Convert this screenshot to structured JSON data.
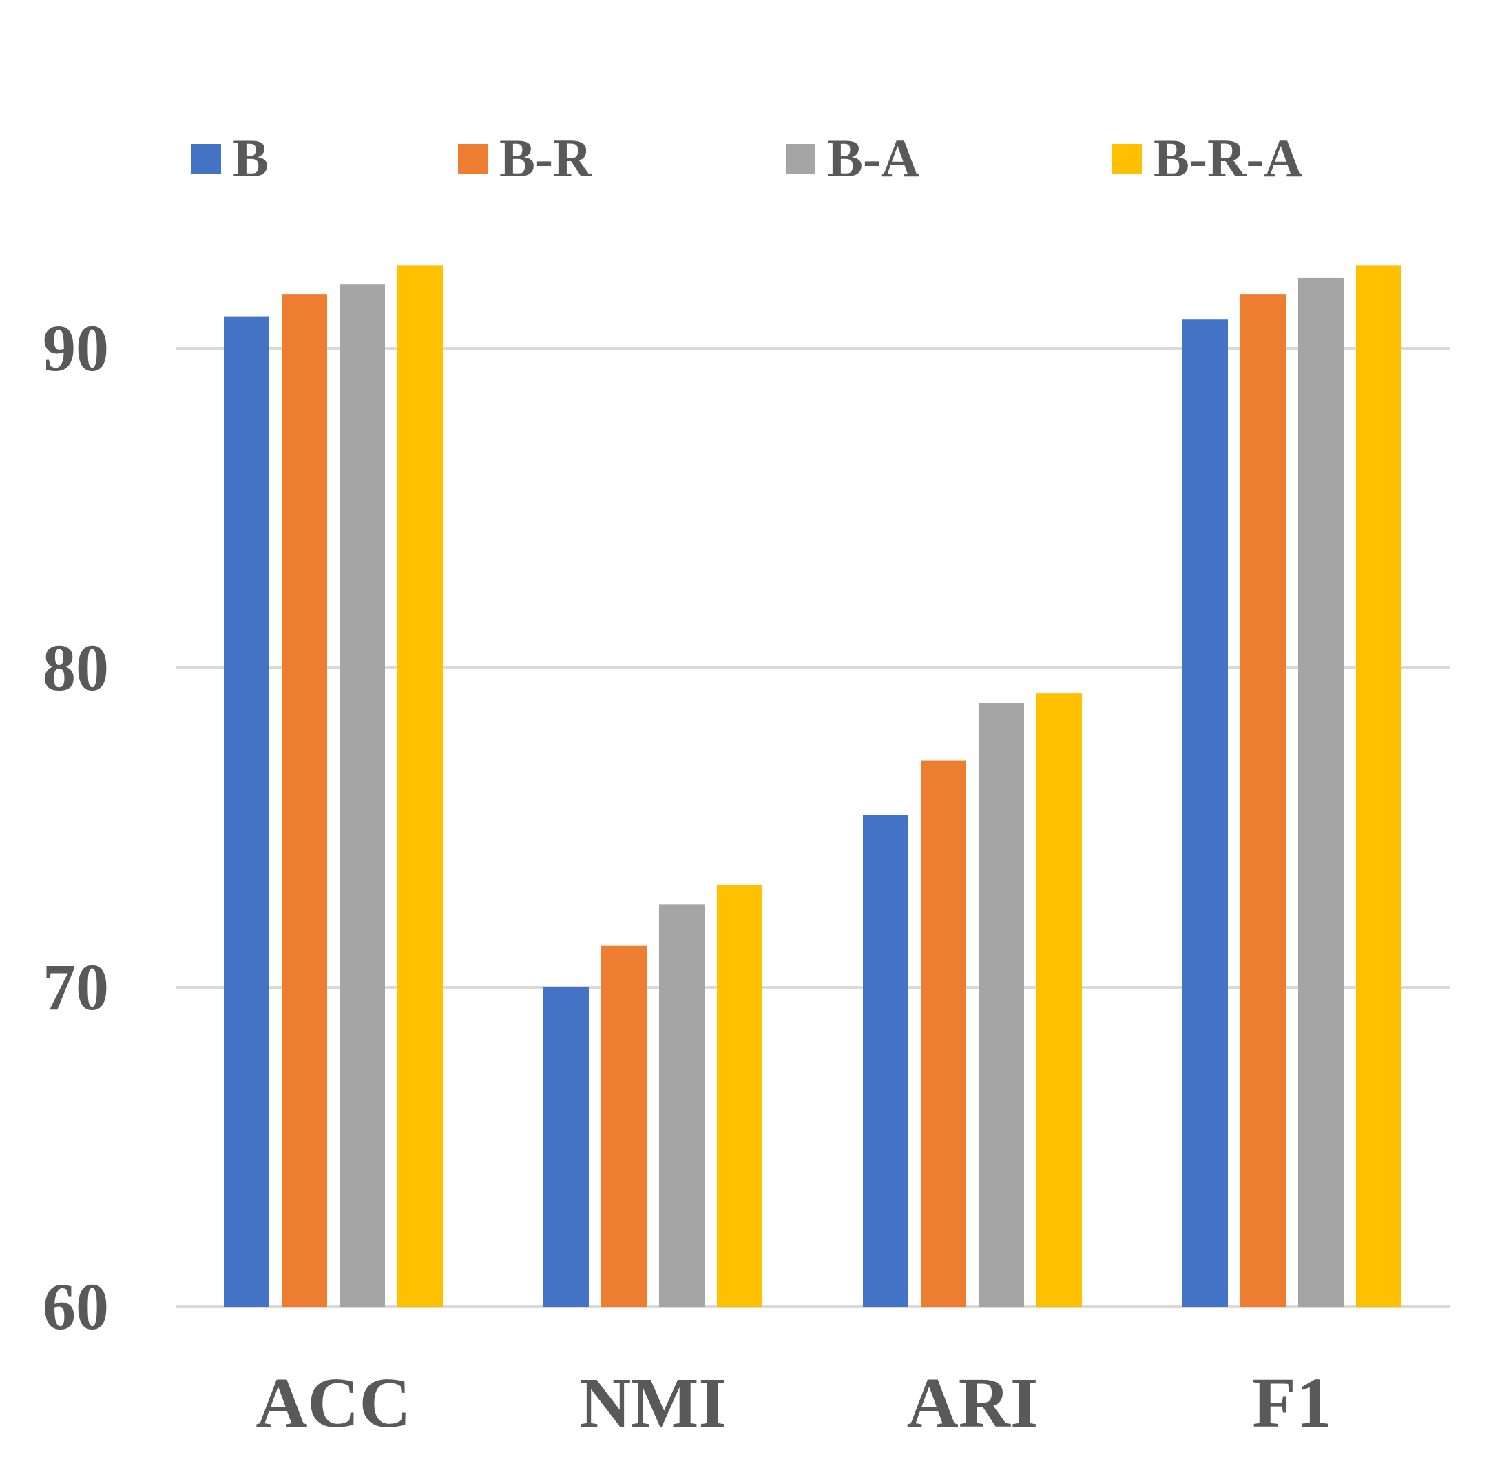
{
  "chart_data": {
    "type": "bar",
    "title": "",
    "xlabel": "",
    "ylabel": "",
    "categories": [
      "ACC",
      "NMI",
      "ARI",
      "F1"
    ],
    "series": [
      {
        "name": "B",
        "color": "#4472C4",
        "values": [
          91.0,
          70.0,
          75.4,
          90.9
        ]
      },
      {
        "name": "B-R",
        "color": "#ED7D31",
        "values": [
          91.7,
          71.3,
          77.1,
          91.7
        ]
      },
      {
        "name": "B-A",
        "color": "#A5A5A5",
        "values": [
          92.0,
          72.6,
          78.9,
          92.2
        ]
      },
      {
        "name": "B-R-A",
        "color": "#FFC000",
        "values": [
          92.6,
          73.2,
          79.2,
          92.6
        ]
      }
    ],
    "ylim": [
      60,
      94
    ],
    "yticks": [
      60,
      70,
      80,
      90
    ],
    "ytick_labels": [
      "60",
      "70",
      "80",
      "90"
    ],
    "grid": true,
    "gridline_color": "#D9D9D9",
    "legend_position": "top"
  }
}
